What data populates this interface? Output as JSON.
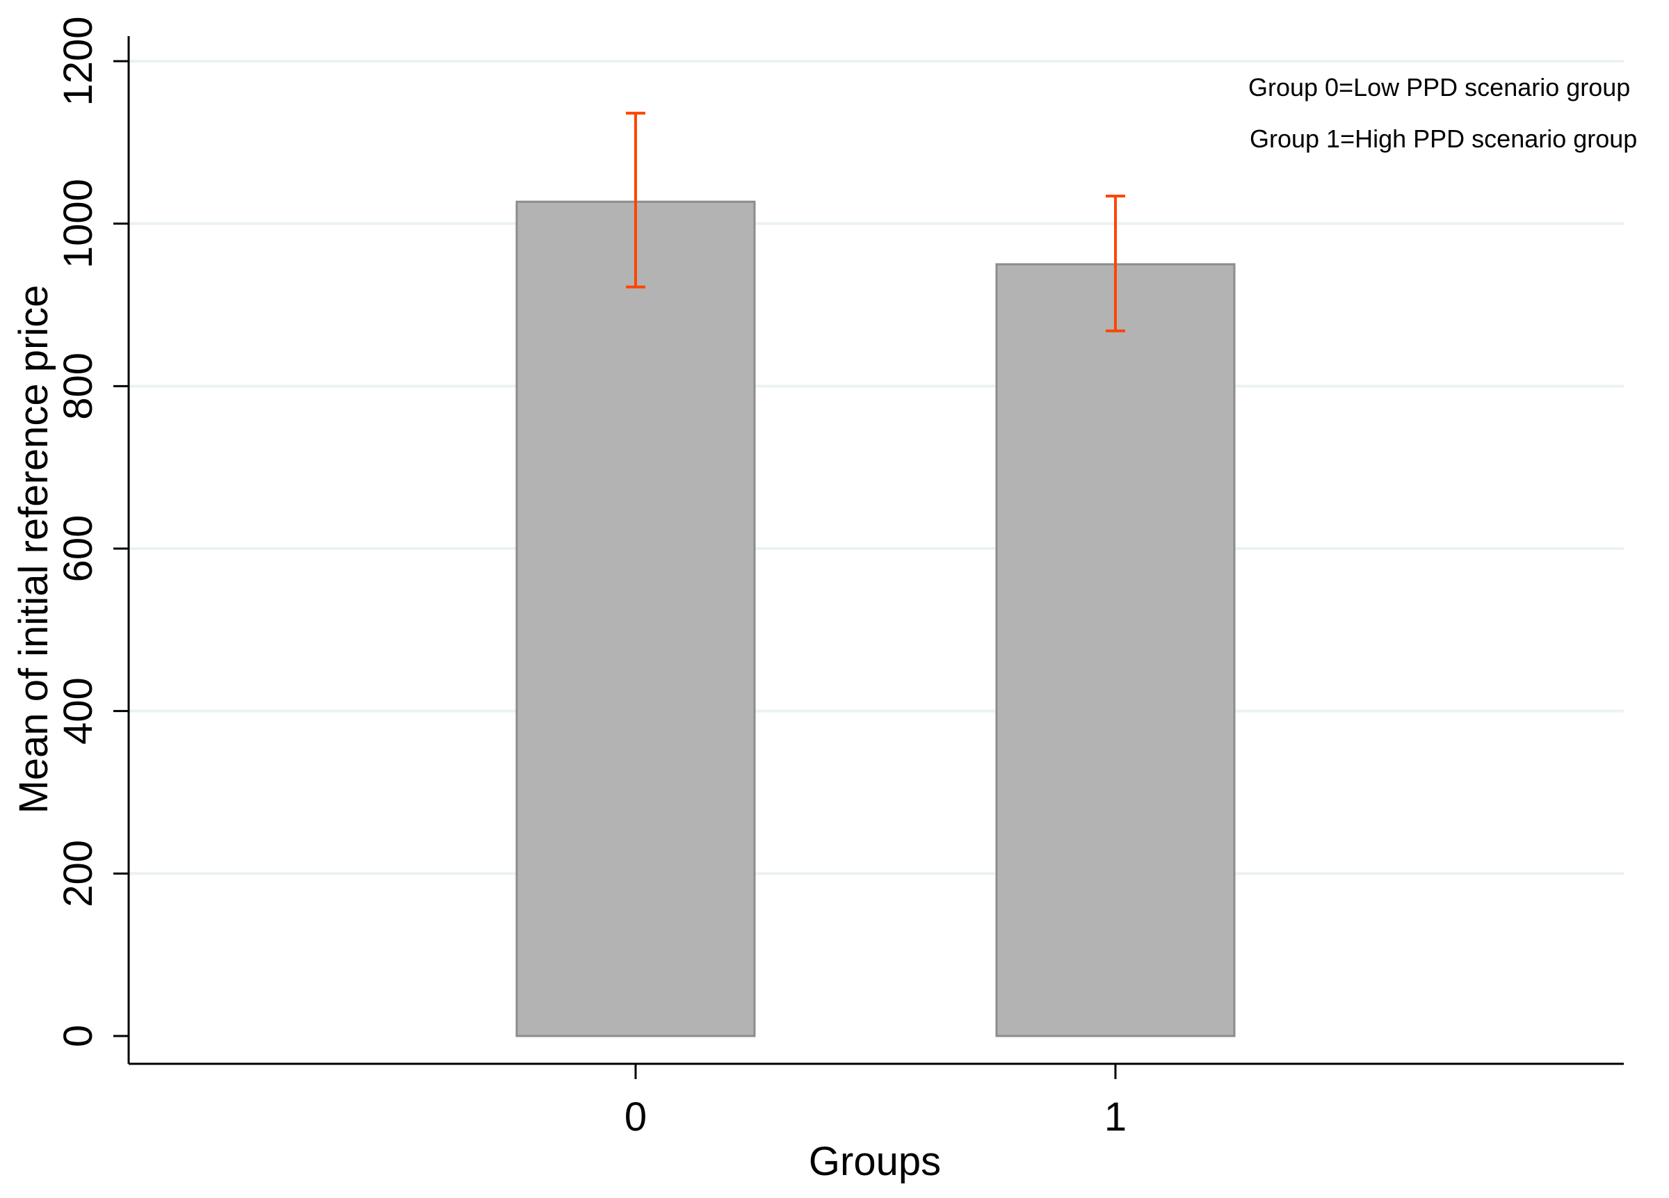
{
  "chart_data": {
    "type": "bar",
    "categories": [
      "0",
      "1"
    ],
    "values": [
      1027,
      950
    ],
    "error_bars": [
      {
        "low": 922,
        "high": 1136
      },
      {
        "low": 868,
        "high": 1034
      }
    ],
    "xlabel": "Groups",
    "ylabel": "Mean of initial reference price",
    "ylim": [
      0,
      1200
    ],
    "yticks": [
      0,
      200,
      400,
      600,
      800,
      1000,
      1200
    ],
    "grid": true,
    "notes": [
      "Group 0=Low PPD scenario group",
      "Group 1=High PPD scenario group"
    ],
    "colors": {
      "bar_fill": "#b3b3b3",
      "bar_stroke": "#8c8c8c",
      "error_bar": "#ff4500",
      "grid": "#eaf2f3",
      "axis": "#000000"
    }
  }
}
